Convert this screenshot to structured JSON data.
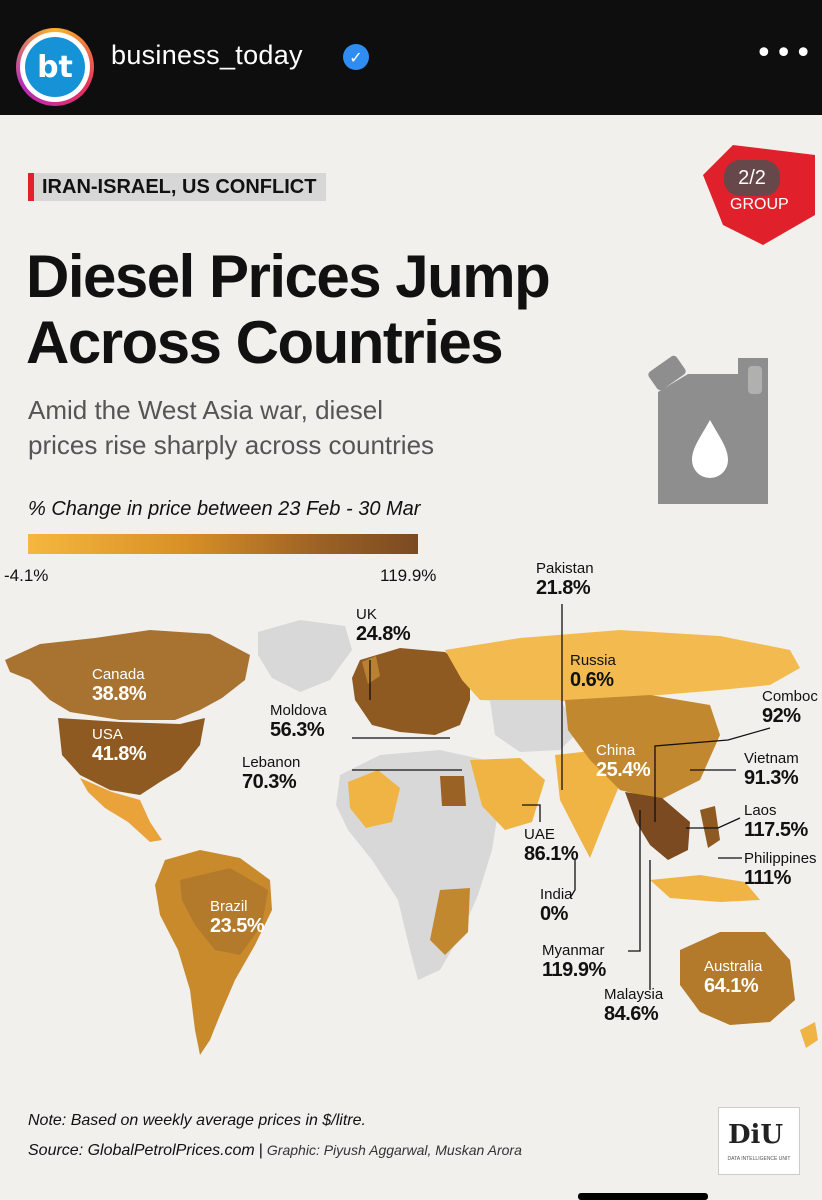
{
  "header": {
    "username": "business_today",
    "avatar_text": "bt",
    "verified_icon": "verified-check-icon",
    "more_icon": "more-dots-icon",
    "more_label": "•••"
  },
  "post": {
    "tag": "IRAN-ISRAEL, US CONFLICT",
    "badge_count": "2/2",
    "badge_text": "GROUP",
    "title_line1": "Diesel Prices Jump",
    "title_line2": "Across Countries",
    "subtitle_line1": "Amid the West Asia war, diesel",
    "subtitle_line2": "prices rise sharply across countries"
  },
  "legend": {
    "title": "% Change in price between 23 Feb - 30 Mar",
    "min": "-4.1%",
    "max": "119.9%",
    "colors": [
      "#f5b73e",
      "#7b4a21"
    ]
  },
  "chart_data": {
    "type": "choropleth map",
    "unit": "%",
    "range": [
      -4.1,
      119.9
    ],
    "countries": [
      {
        "name": "Canada",
        "value": 38.8,
        "label": "38.8%"
      },
      {
        "name": "USA",
        "value": 41.8,
        "label": "41.8%"
      },
      {
        "name": "UK",
        "value": 24.8,
        "label": "24.8%"
      },
      {
        "name": "Moldova",
        "value": 56.3,
        "label": "56.3%"
      },
      {
        "name": "Lebanon",
        "value": 70.3,
        "label": "70.3%"
      },
      {
        "name": "Pakistan",
        "value": 21.8,
        "label": "21.8%"
      },
      {
        "name": "Russia",
        "value": 0.6,
        "label": "0.6%"
      },
      {
        "name": "China",
        "value": 25.4,
        "label": "25.4%"
      },
      {
        "name": "Combodia",
        "display_name": "Comboc",
        "value": 92,
        "label": "92%"
      },
      {
        "name": "Vietnam",
        "value": 91.3,
        "label": "91.3%"
      },
      {
        "name": "Laos",
        "value": 117.5,
        "label": "117.5%"
      },
      {
        "name": "Philippines",
        "value": 111,
        "label": "111%"
      },
      {
        "name": "UAE",
        "value": 86.1,
        "label": "86.1%"
      },
      {
        "name": "India",
        "value": 0,
        "label": "0%"
      },
      {
        "name": "Myanmar",
        "value": 119.9,
        "label": "119.9%"
      },
      {
        "name": "Malaysia",
        "value": 84.6,
        "label": "84.6%"
      },
      {
        "name": "Brazil",
        "value": 23.5,
        "label": "23.5%"
      },
      {
        "name": "Australia",
        "value": 64.1,
        "label": "64.1%"
      }
    ]
  },
  "footer": {
    "note": "Note: Based on weekly average prices in $/litre.",
    "source": "Source: GlobalPetrolPrices.com",
    "separator": "|",
    "credit": "Graphic: Piyush Aggarwal, Muskan Arora",
    "logo": "DiU",
    "logo_sub": "DATA INTELLIGENCE UNIT"
  }
}
